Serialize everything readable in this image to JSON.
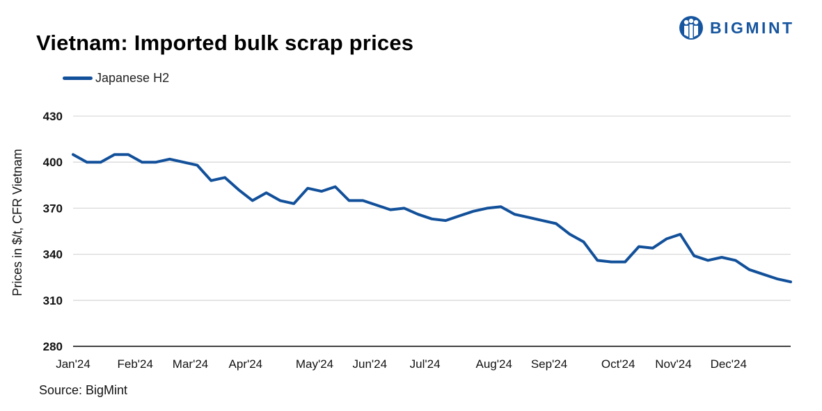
{
  "header": {
    "title": "Vietnam: Imported bulk scrap prices",
    "brand": "BIGMINT",
    "source": "Source: BigMint"
  },
  "colors": {
    "series": "#12509a",
    "brand": "#17569f",
    "grid": "#d9d9d9",
    "axis": "#000000"
  },
  "chart_data": {
    "type": "line",
    "title": "Vietnam: Imported bulk scrap prices",
    "ylabel": "Prices in $/t, CFR Vietnam",
    "xlabel": "",
    "ylim": [
      280,
      430
    ],
    "yticks": [
      280,
      310,
      340,
      370,
      400,
      430
    ],
    "grid": true,
    "legend_position": "top-left",
    "x_tick_labels": [
      {
        "label": "Jan'24",
        "index": 0
      },
      {
        "label": "Feb'24",
        "index": 4.5
      },
      {
        "label": "Mar'24",
        "index": 8.5
      },
      {
        "label": "Apr'24",
        "index": 12.5
      },
      {
        "label": "May'24",
        "index": 17.5
      },
      {
        "label": "Jun'24",
        "index": 21.5
      },
      {
        "label": "Jul'24",
        "index": 25.5
      },
      {
        "label": "Aug'24",
        "index": 30.5
      },
      {
        "label": "Sep'24",
        "index": 34.5
      },
      {
        "label": "Oct'24",
        "index": 39.5
      },
      {
        "label": "Nov'24",
        "index": 43.5
      },
      {
        "label": "Dec'24",
        "index": 47.5
      }
    ],
    "series": [
      {
        "name": "Japanese H2",
        "values": [
          405,
          400,
          400,
          405,
          405,
          400,
          400,
          402,
          400,
          398,
          388,
          390,
          382,
          375,
          380,
          375,
          373,
          383,
          381,
          384,
          375,
          375,
          372,
          369,
          370,
          366,
          363,
          362,
          365,
          368,
          370,
          371,
          366,
          364,
          362,
          360,
          353,
          348,
          336,
          335,
          335,
          345,
          344,
          350,
          353,
          339,
          336,
          338,
          336,
          330,
          327,
          324,
          322
        ]
      }
    ]
  }
}
